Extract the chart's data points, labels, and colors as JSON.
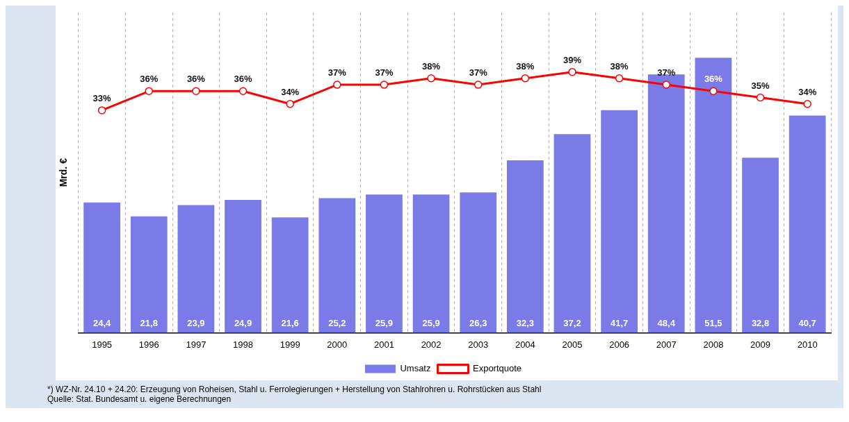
{
  "chart_data": {
    "type": "bar",
    "ylabel": "Mrd. €",
    "grid": "x",
    "legend": "bottom",
    "categories": [
      "1995",
      "1996",
      "1997",
      "1998",
      "1999",
      "2000",
      "2001",
      "2002",
      "2003",
      "2004",
      "2005",
      "2006",
      "2007",
      "2008",
      "2009",
      "2010"
    ],
    "series": [
      {
        "name": "Umsatz",
        "color": "#7b7be8",
        "values": [
          24.4,
          21.8,
          23.9,
          24.9,
          21.6,
          25.2,
          25.9,
          25.9,
          26.3,
          32.3,
          37.2,
          41.7,
          48.4,
          51.5,
          32.8,
          40.7
        ],
        "value_labels": [
          "24,4",
          "21,8",
          "23,9",
          "24,9",
          "21,6",
          "25,2",
          "25,9",
          "25,9",
          "26,3",
          "32,3",
          "37,2",
          "41,7",
          "48,4",
          "51,5",
          "32,8",
          "40,7"
        ]
      },
      {
        "name": "Exportquote",
        "type": "line",
        "axis": "y2",
        "color": "#ff0000",
        "marker": "circle",
        "values": [
          33,
          36,
          36,
          36,
          34,
          37,
          37,
          38,
          37,
          38,
          39,
          38,
          37,
          36,
          35,
          34
        ],
        "value_labels": [
          "33%",
          "36%",
          "36%",
          "36%",
          "34%",
          "37%",
          "37%",
          "38%",
          "37%",
          "38%",
          "39%",
          "38%",
          "37%",
          "36%",
          "35%",
          "34%"
        ]
      }
    ],
    "annotations": [
      "*) WZ-Nr. 24.10 + 24.20: Erzeugung von Roheisen, Stahl u. Ferrolegierungen + Herstellung von Stahlrohren u. Rohrstücken aus Stahl",
      "Quelle: Stat. Bundesamt u. eigene Berechnungen"
    ]
  }
}
